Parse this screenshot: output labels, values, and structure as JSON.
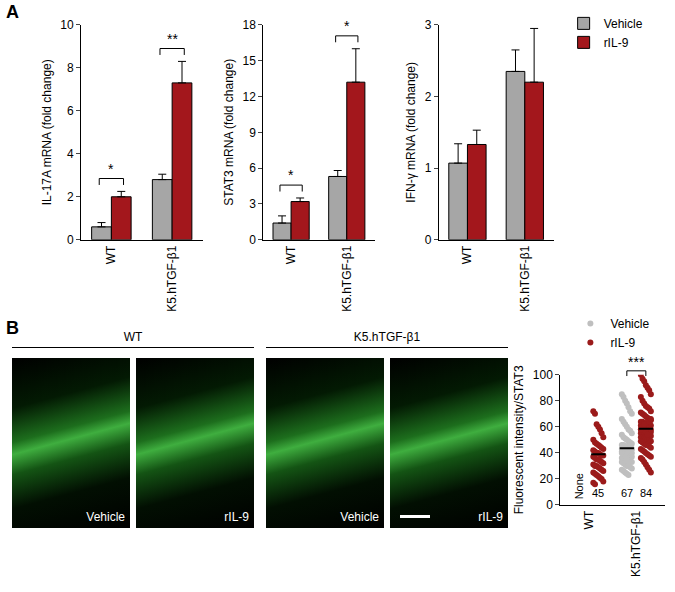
{
  "panel_labels": [
    "A",
    "B"
  ],
  "image_panels": {
    "groups": [
      {
        "label": "WT",
        "panels": [
          "Vehicle",
          "rIL-9"
        ]
      },
      {
        "label": "K5.hTGF-β1",
        "panels": [
          "Vehicle",
          "rIL-9"
        ]
      }
    ]
  },
  "chart_data": [
    {
      "type": "bar",
      "y_label": "IL-17A mRNA (fold change)",
      "categories": [
        "WT",
        "K5.hTGF-β1"
      ],
      "series": [
        {
          "name": "Vehicle",
          "color": "#a6a6a6",
          "values": [
            0.6,
            2.8
          ],
          "errors": [
            0.2,
            0.25
          ]
        },
        {
          "name": "rIL-9",
          "color": "#a3171c",
          "values": [
            2.0,
            7.3
          ],
          "errors": [
            0.25,
            1.0
          ]
        }
      ],
      "ylim": [
        0,
        10
      ],
      "yticks": [
        0,
        2,
        4,
        6,
        8,
        10
      ],
      "grid": false,
      "significance": [
        {
          "category": "WT",
          "label": "*"
        },
        {
          "category": "K5.hTGF-β1",
          "label": "**"
        }
      ]
    },
    {
      "type": "bar",
      "y_label": "STAT3 mRNA (fold change)",
      "categories": [
        "WT",
        "K5.hTGF-β1"
      ],
      "series": [
        {
          "name": "Vehicle",
          "color": "#a6a6a6",
          "values": [
            1.4,
            5.3
          ],
          "errors": [
            0.6,
            0.5
          ]
        },
        {
          "name": "rIL-9",
          "color": "#a3171c",
          "values": [
            3.2,
            13.2
          ],
          "errors": [
            0.3,
            2.8
          ]
        }
      ],
      "ylim": [
        0,
        18
      ],
      "yticks": [
        0,
        3,
        6,
        9,
        12,
        15,
        18
      ],
      "grid": false,
      "significance": [
        {
          "category": "WT",
          "label": "*"
        },
        {
          "category": "K5.hTGF-β1",
          "label": "*"
        }
      ]
    },
    {
      "type": "bar",
      "y_label": "IFN-γ mRNA (fold change)",
      "categories": [
        "WT",
        "K5.hTGF-β1"
      ],
      "series": [
        {
          "name": "Vehicle",
          "color": "#a6a6a6",
          "values": [
            1.07,
            2.35
          ],
          "errors": [
            0.27,
            0.3
          ]
        },
        {
          "name": "rIL-9",
          "color": "#a3171c",
          "values": [
            1.33,
            2.2
          ],
          "errors": [
            0.2,
            0.75
          ]
        }
      ],
      "ylim": [
        0,
        3
      ],
      "yticks": [
        0,
        1,
        2,
        3
      ],
      "grid": false,
      "legend": "right",
      "significance": []
    },
    {
      "type": "scatter",
      "y_label": "Fluorescent intensity/STAT3",
      "categories": [
        "WT",
        "K5.hTGF-β1"
      ],
      "series": [
        {
          "name": "Vehicle",
          "color": "#bfbfbf"
        },
        {
          "name": "rIL-9",
          "color": "#9b1b1b"
        }
      ],
      "groups": [
        {
          "category": "WT",
          "series": "Vehicle",
          "values": [],
          "mean": null,
          "n_label": "None"
        },
        {
          "category": "WT",
          "series": "rIL-9",
          "mean": 39,
          "n_label": 45,
          "values": [
            72,
            70,
            62,
            60,
            58,
            55,
            52,
            50,
            48,
            47,
            46,
            45,
            44,
            43,
            42,
            41,
            40,
            40,
            39,
            38,
            38,
            37,
            36,
            35,
            35,
            34,
            33,
            32,
            31,
            30,
            30,
            29,
            28,
            27,
            26,
            25,
            24,
            23,
            22,
            21,
            20,
            18,
            17,
            16,
            40
          ]
        },
        {
          "category": "K5.hTGF-β1",
          "series": "Vehicle",
          "mean": 43.5,
          "n_label": 67,
          "values": [
            85,
            83,
            80,
            78,
            75,
            72,
            70,
            66,
            64,
            62,
            60,
            58,
            57,
            55,
            54,
            52,
            51,
            50,
            49,
            48,
            47,
            46,
            46,
            45,
            45,
            44,
            44,
            43,
            43,
            42,
            42,
            41,
            41,
            40,
            40,
            40,
            39,
            39,
            38,
            38,
            37,
            37,
            36,
            36,
            35,
            35,
            34,
            34,
            33,
            33,
            32,
            31,
            30,
            30,
            29,
            28,
            27,
            26,
            25,
            24,
            23,
            45,
            43,
            41,
            39,
            37,
            35
          ]
        },
        {
          "category": "K5.hTGF-β1",
          "series": "rIL-9",
          "mean": 58.5,
          "n_label": 84,
          "values": [
            100,
            97,
            95,
            92,
            90,
            88,
            85,
            83,
            80,
            78,
            76,
            75,
            74,
            72,
            71,
            70,
            69,
            68,
            67,
            66,
            65,
            64,
            64,
            63,
            63,
            62,
            62,
            61,
            61,
            60,
            60,
            60,
            59,
            59,
            58,
            58,
            58,
            57,
            57,
            57,
            56,
            56,
            55,
            55,
            55,
            54,
            54,
            53,
            53,
            52,
            52,
            51,
            51,
            50,
            50,
            49,
            49,
            48,
            47,
            46,
            46,
            45,
            44,
            43,
            42,
            41,
            40,
            39,
            38,
            37,
            36,
            35,
            33,
            31,
            29,
            27,
            25,
            58,
            60,
            62,
            56,
            54,
            64,
            66
          ]
        }
      ],
      "ylim": [
        0,
        100
      ],
      "yticks": [
        0,
        20,
        40,
        60,
        80,
        100
      ],
      "grid": false,
      "legend": "right",
      "significance": [
        {
          "category": "K5.hTGF-β1",
          "label": "***"
        }
      ]
    }
  ]
}
